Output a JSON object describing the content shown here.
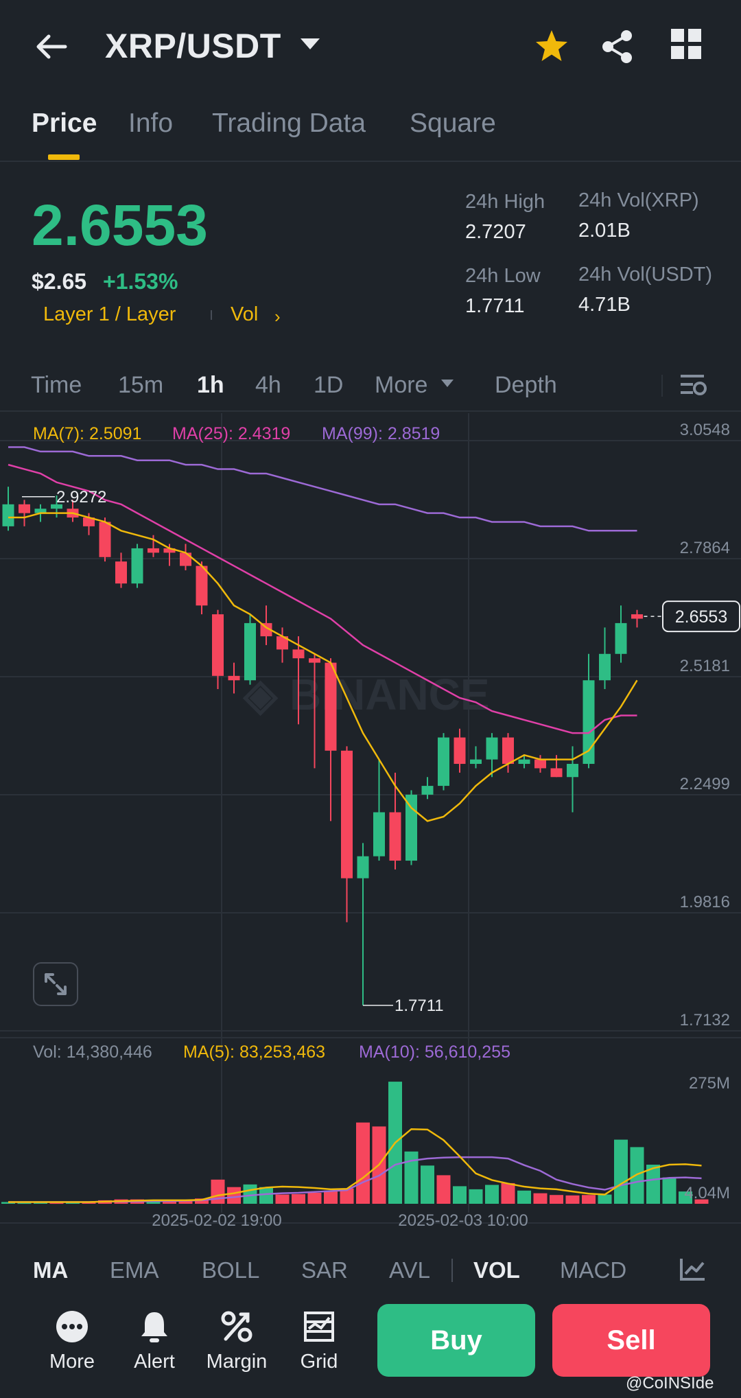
{
  "header": {
    "pair": "XRP/USDT"
  },
  "tabs": [
    {
      "label": "Price",
      "active": true
    },
    {
      "label": "Info",
      "active": false
    },
    {
      "label": "Trading Data",
      "active": false
    },
    {
      "label": "Square",
      "active": false
    }
  ],
  "price": {
    "last": "2.6553",
    "usd": "$2.65",
    "change": "+1.53%",
    "tag_layer": "Layer 1 / Layer",
    "tag_vol": "Vol",
    "high_label": "24h High",
    "high_value": "2.7207",
    "low_label": "24h Low",
    "low_value": "1.7711",
    "vol_xrp_label": "24h Vol(XRP)",
    "vol_xrp_value": "2.01B",
    "vol_usdt_label": "24h Vol(USDT)",
    "vol_usdt_value": "4.71B"
  },
  "intervals": {
    "time": "Time",
    "m15": "15m",
    "h1": "1h",
    "h4": "4h",
    "d1": "1D",
    "more": "More",
    "depth": "Depth"
  },
  "ma_legend": {
    "ma7": "MA(7): 2.5091",
    "ma25": "MA(25): 2.4319",
    "ma99": "MA(99): 2.8519"
  },
  "vol_legend": {
    "vol": "Vol: 14,380,446",
    "ma5": "MA(5): 83,253,463",
    "ma10": "MA(10): 56,610,255"
  },
  "colors": {
    "up": "#2ebd85",
    "down": "#f6465d",
    "ma7": "#f0b90b",
    "ma25": "#e040a8",
    "ma99": "#9d6ad6",
    "accent": "#f0b90b"
  },
  "chart_data": {
    "type": "candlestick",
    "y_ticks": [
      "3.0548",
      "2.7864",
      "2.5181",
      "2.2499",
      "1.9816",
      "1.7132"
    ],
    "y_tick_values": [
      3.0548,
      2.7864,
      2.5181,
      2.2499,
      1.9816,
      1.7132
    ],
    "ylim": [
      1.7132,
      3.0548
    ],
    "current_price_label": "2.6553",
    "current_price": 2.6553,
    "high_marker_label": "2.9272",
    "high_marker": 2.9272,
    "low_marker_label": "1.7711",
    "low_marker": 1.7711,
    "x_labels": [
      "2025-02-02 19:00",
      "2025-02-03 10:00"
    ],
    "candles": [
      {
        "o": 2.86,
        "h": 2.95,
        "l": 2.85,
        "c": 2.91
      },
      {
        "o": 2.91,
        "h": 2.92,
        "l": 2.86,
        "c": 2.89
      },
      {
        "o": 2.89,
        "h": 2.91,
        "l": 2.87,
        "c": 2.9
      },
      {
        "o": 2.9,
        "h": 2.93,
        "l": 2.88,
        "c": 2.91
      },
      {
        "o": 2.9,
        "h": 2.92,
        "l": 2.87,
        "c": 2.88
      },
      {
        "o": 2.88,
        "h": 2.89,
        "l": 2.84,
        "c": 2.86
      },
      {
        "o": 2.87,
        "h": 2.88,
        "l": 2.78,
        "c": 2.79
      },
      {
        "o": 2.78,
        "h": 2.8,
        "l": 2.72,
        "c": 2.73
      },
      {
        "o": 2.73,
        "h": 2.82,
        "l": 2.72,
        "c": 2.81
      },
      {
        "o": 2.81,
        "h": 2.84,
        "l": 2.79,
        "c": 2.8
      },
      {
        "o": 2.81,
        "h": 2.82,
        "l": 2.77,
        "c": 2.8
      },
      {
        "o": 2.8,
        "h": 2.82,
        "l": 2.76,
        "c": 2.77
      },
      {
        "o": 2.77,
        "h": 2.78,
        "l": 2.66,
        "c": 2.68
      },
      {
        "o": 2.66,
        "h": 2.67,
        "l": 2.49,
        "c": 2.52
      },
      {
        "o": 2.52,
        "h": 2.55,
        "l": 2.48,
        "c": 2.51
      },
      {
        "o": 2.51,
        "h": 2.66,
        "l": 2.5,
        "c": 2.64
      },
      {
        "o": 2.64,
        "h": 2.68,
        "l": 2.59,
        "c": 2.61
      },
      {
        "o": 2.61,
        "h": 2.63,
        "l": 2.55,
        "c": 2.58
      },
      {
        "o": 2.58,
        "h": 2.61,
        "l": 2.41,
        "c": 2.56
      },
      {
        "o": 2.56,
        "h": 2.57,
        "l": 2.31,
        "c": 2.55
      },
      {
        "o": 2.55,
        "h": 2.56,
        "l": 2.19,
        "c": 2.35
      },
      {
        "o": 2.35,
        "h": 2.36,
        "l": 1.96,
        "c": 2.06
      },
      {
        "o": 2.06,
        "h": 2.14,
        "l": 1.7711,
        "c": 2.11
      },
      {
        "o": 2.11,
        "h": 2.33,
        "l": 2.1,
        "c": 2.21
      },
      {
        "o": 2.21,
        "h": 2.3,
        "l": 2.08,
        "c": 2.1
      },
      {
        "o": 2.1,
        "h": 2.26,
        "l": 2.09,
        "c": 2.25
      },
      {
        "o": 2.25,
        "h": 2.29,
        "l": 2.24,
        "c": 2.27
      },
      {
        "o": 2.27,
        "h": 2.39,
        "l": 2.26,
        "c": 2.38
      },
      {
        "o": 2.38,
        "h": 2.4,
        "l": 2.3,
        "c": 2.32
      },
      {
        "o": 2.32,
        "h": 2.36,
        "l": 2.31,
        "c": 2.33
      },
      {
        "o": 2.33,
        "h": 2.39,
        "l": 2.29,
        "c": 2.38
      },
      {
        "o": 2.38,
        "h": 2.39,
        "l": 2.3,
        "c": 2.32
      },
      {
        "o": 2.32,
        "h": 2.34,
        "l": 2.31,
        "c": 2.33
      },
      {
        "o": 2.33,
        "h": 2.34,
        "l": 2.3,
        "c": 2.31
      },
      {
        "o": 2.31,
        "h": 2.34,
        "l": 2.29,
        "c": 2.29
      },
      {
        "o": 2.29,
        "h": 2.36,
        "l": 2.21,
        "c": 2.32
      },
      {
        "o": 2.32,
        "h": 2.57,
        "l": 2.31,
        "c": 2.51
      },
      {
        "o": 2.51,
        "h": 2.63,
        "l": 2.49,
        "c": 2.57
      },
      {
        "o": 2.57,
        "h": 2.68,
        "l": 2.55,
        "c": 2.64
      },
      {
        "o": 2.66,
        "h": 2.67,
        "l": 2.63,
        "c": 2.65
      }
    ],
    "ma7": [
      2.88,
      2.88,
      2.89,
      2.89,
      2.89,
      2.88,
      2.87,
      2.85,
      2.84,
      2.83,
      2.81,
      2.8,
      2.77,
      2.73,
      2.68,
      2.66,
      2.63,
      2.61,
      2.59,
      2.57,
      2.55,
      2.47,
      2.39,
      2.33,
      2.27,
      2.22,
      2.19,
      2.2,
      2.23,
      2.27,
      2.3,
      2.32,
      2.34,
      2.33,
      2.33,
      2.33,
      2.35,
      2.4,
      2.45,
      2.51
    ],
    "ma25": [
      3.0,
      2.99,
      2.98,
      2.96,
      2.95,
      2.94,
      2.92,
      2.91,
      2.89,
      2.87,
      2.85,
      2.83,
      2.81,
      2.79,
      2.77,
      2.75,
      2.73,
      2.71,
      2.69,
      2.67,
      2.65,
      2.62,
      2.59,
      2.57,
      2.55,
      2.53,
      2.51,
      2.49,
      2.47,
      2.46,
      2.44,
      2.43,
      2.42,
      2.41,
      2.4,
      2.39,
      2.39,
      2.42,
      2.43,
      2.43
    ],
    "ma99": [
      3.04,
      3.04,
      3.03,
      3.03,
      3.03,
      3.02,
      3.02,
      3.02,
      3.01,
      3.01,
      3.01,
      3.0,
      3.0,
      2.99,
      2.99,
      2.98,
      2.98,
      2.97,
      2.96,
      2.95,
      2.94,
      2.93,
      2.92,
      2.91,
      2.91,
      2.9,
      2.89,
      2.89,
      2.88,
      2.88,
      2.87,
      2.87,
      2.87,
      2.86,
      2.86,
      2.86,
      2.85,
      2.85,
      2.85,
      2.85
    ],
    "vol_ticks": [
      "275M",
      "4.04M"
    ],
    "vol_ylim": [
      0,
      300
    ],
    "volumes": [
      4,
      3,
      4,
      3,
      4,
      4,
      8,
      10,
      10,
      7,
      7,
      8,
      12,
      55,
      38,
      44,
      38,
      21,
      22,
      25,
      30,
      35,
      185,
      176,
      278,
      119,
      87,
      65,
      40,
      33,
      43,
      47,
      30,
      24,
      20,
      19,
      20,
      21,
      146,
      129,
      89,
      60,
      28,
      10
    ],
    "volumes_up": [
      true,
      true,
      true,
      false,
      true,
      false,
      false,
      false,
      false,
      true,
      false,
      false,
      false,
      false,
      false,
      true,
      true,
      false,
      false,
      false,
      false,
      false,
      false,
      false,
      true,
      true,
      true,
      false,
      true,
      true,
      true,
      false,
      true,
      false,
      false,
      false,
      false,
      true,
      true,
      true,
      true,
      true,
      true,
      false
    ],
    "vol_ma5": [
      4,
      4,
      4,
      4,
      4,
      4,
      5,
      6,
      7,
      8,
      8,
      8,
      9,
      19,
      24,
      31,
      37,
      39,
      38,
      36,
      33,
      34,
      59,
      89,
      139,
      170,
      169,
      145,
      108,
      69,
      54,
      46,
      39,
      35,
      33,
      28,
      23,
      21,
      45,
      67,
      81,
      89,
      90,
      87
    ],
    "vol_ma10": [
      4,
      4,
      4,
      4,
      4,
      4,
      5,
      5,
      5,
      6,
      6,
      7,
      8,
      12,
      15,
      19,
      22,
      24,
      25,
      27,
      29,
      31,
      49,
      64,
      89,
      98,
      103,
      105,
      106,
      106,
      106,
      103,
      88,
      75,
      55,
      45,
      37,
      32,
      42,
      50,
      55,
      59,
      60,
      58
    ]
  },
  "indicators": {
    "ma": "MA",
    "ema": "EMA",
    "boll": "BOLL",
    "sar": "SAR",
    "avl": "AVL",
    "vol": "VOL",
    "macd": "MACD"
  },
  "bottom": {
    "more": "More",
    "alert": "Alert",
    "margin": "Margin",
    "grid": "Grid",
    "buy": "Buy",
    "sell": "Sell",
    "credit": "@CoINSIde"
  }
}
